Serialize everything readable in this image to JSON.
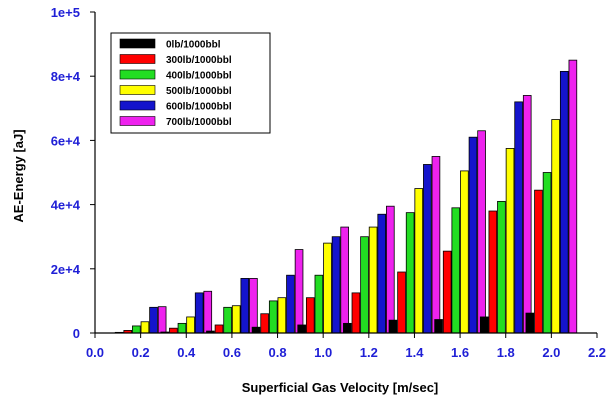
{
  "chart_data": {
    "type": "bar",
    "xlabel": "Superficial Gas Velocity [m/sec]",
    "ylabel": "AE-Energy [aJ]",
    "xlim": [
      0.0,
      2.2
    ],
    "ylim": [
      0,
      100000
    ],
    "x_ticks": [
      "0.0",
      "0.2",
      "0.4",
      "0.6",
      "0.8",
      "1.0",
      "1.2",
      "1.4",
      "1.6",
      "1.8",
      "2.0",
      "2.2"
    ],
    "y_ticks": [
      "0",
      "2e+4",
      "4e+4",
      "6e+4",
      "8e+4",
      "1e+5"
    ],
    "tick_color": "#1f1fd6",
    "grid": false,
    "legend_position": "top-left",
    "x": [
      0.2,
      0.4,
      0.6,
      0.8,
      1.0,
      1.2,
      1.4,
      1.6,
      1.8,
      2.0
    ],
    "series": [
      {
        "name": "0lb/1000bbl",
        "color": "#000000",
        "values": [
          200,
          300,
          600,
          1800,
          2500,
          3000,
          4000,
          4200,
          5000,
          6200
        ]
      },
      {
        "name": "300lb/1000bbl",
        "color": "#ff0000",
        "values": [
          800,
          1500,
          2500,
          6000,
          11000,
          12500,
          19000,
          25500,
          38000,
          44500
        ]
      },
      {
        "name": "400lb/1000bbl",
        "color": "#22dd22",
        "values": [
          2200,
          3000,
          8000,
          10000,
          18000,
          30000,
          37500,
          39000,
          41000,
          50000
        ]
      },
      {
        "name": "500lb/1000bbl",
        "color": "#ffff00",
        "values": [
          3500,
          5000,
          8500,
          11000,
          28000,
          33000,
          45000,
          50500,
          57500,
          66500
        ]
      },
      {
        "name": "600lb/1000bbl",
        "color": "#1414cc",
        "values": [
          8000,
          12500,
          17000,
          18000,
          30000,
          37000,
          52500,
          61000,
          72000,
          81500
        ]
      },
      {
        "name": "700lb/1000bbl",
        "color": "#ee22ee",
        "values": [
          8200,
          13000,
          17000,
          26000,
          33000,
          39500,
          55000,
          63000,
          74000,
          85000
        ]
      }
    ]
  }
}
